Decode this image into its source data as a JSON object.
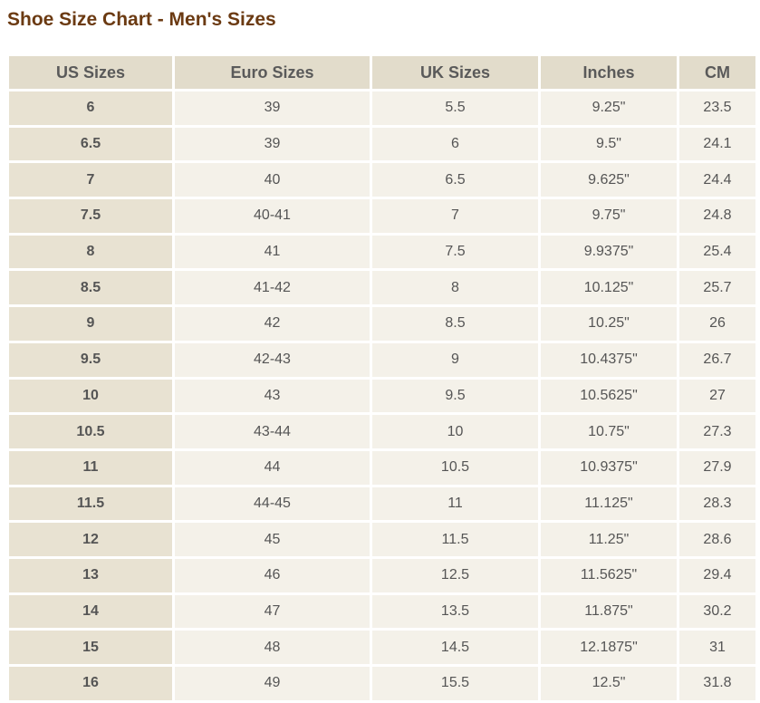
{
  "title": "Shoe Size Chart - Men's Sizes",
  "table": {
    "headers": [
      "US Sizes",
      "Euro Sizes",
      "UK Sizes",
      "Inches",
      "CM"
    ],
    "rows": [
      [
        "6",
        "39",
        "5.5",
        "9.25\"",
        "23.5"
      ],
      [
        "6.5",
        "39",
        "6",
        "9.5\"",
        "24.1"
      ],
      [
        "7",
        "40",
        "6.5",
        "9.625\"",
        "24.4"
      ],
      [
        "7.5",
        "40-41",
        "7",
        "9.75\"",
        "24.8"
      ],
      [
        "8",
        "41",
        "7.5",
        "9.9375\"",
        "25.4"
      ],
      [
        "8.5",
        "41-42",
        "8",
        "10.125\"",
        "25.7"
      ],
      [
        "9",
        "42",
        "8.5",
        "10.25\"",
        "26"
      ],
      [
        "9.5",
        "42-43",
        "9",
        "10.4375\"",
        "26.7"
      ],
      [
        "10",
        "43",
        "9.5",
        "10.5625\"",
        "27"
      ],
      [
        "10.5",
        "43-44",
        "10",
        "10.75\"",
        "27.3"
      ],
      [
        "11",
        "44",
        "10.5",
        "10.9375\"",
        "27.9"
      ],
      [
        "11.5",
        "44-45",
        "11",
        "11.125\"",
        "28.3"
      ],
      [
        "12",
        "45",
        "11.5",
        "11.25\"",
        "28.6"
      ],
      [
        "13",
        "46",
        "12.5",
        "11.5625\"",
        "29.4"
      ],
      [
        "14",
        "47",
        "13.5",
        "11.875\"",
        "30.2"
      ],
      [
        "15",
        "48",
        "14.5",
        "12.1875\"",
        "31"
      ],
      [
        "16",
        "49",
        "15.5",
        "12.5\"",
        "31.8"
      ]
    ]
  },
  "colors": {
    "title": "#6b3a12",
    "header_bg": "#e2dccb",
    "first_col_bg": "#e8e2d2",
    "cell_bg": "#f4f1e9",
    "text": "#555555"
  }
}
